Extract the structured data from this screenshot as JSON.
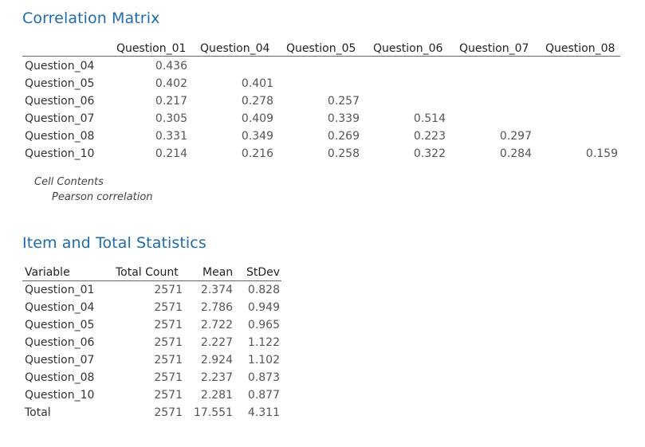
{
  "correlation": {
    "title": "Correlation Matrix",
    "columns": [
      "Question_01",
      "Question_04",
      "Question_05",
      "Question_06",
      "Question_07",
      "Question_08"
    ],
    "rows": [
      {
        "label": "Question_04",
        "values": [
          "0.436",
          "",
          "",
          "",
          "",
          ""
        ]
      },
      {
        "label": "Question_05",
        "values": [
          "0.402",
          "0.401",
          "",
          "",
          "",
          ""
        ]
      },
      {
        "label": "Question_06",
        "values": [
          "0.217",
          "0.278",
          "0.257",
          "",
          "",
          ""
        ]
      },
      {
        "label": "Question_07",
        "values": [
          "0.305",
          "0.409",
          "0.339",
          "0.514",
          "",
          ""
        ]
      },
      {
        "label": "Question_08",
        "values": [
          "0.331",
          "0.349",
          "0.269",
          "0.223",
          "0.297",
          ""
        ]
      },
      {
        "label": "Question_10",
        "values": [
          "0.214",
          "0.216",
          "0.258",
          "0.322",
          "0.284",
          "0.159"
        ]
      }
    ],
    "cell_contents_label": "Cell Contents",
    "cell_contents_value": "Pearson correlation"
  },
  "item_stats": {
    "title": "Item and Total Statistics",
    "columns": [
      "Variable",
      "Total Count",
      "Mean",
      "StDev"
    ],
    "rows": [
      {
        "variable": "Question_01",
        "count": "2571",
        "mean": "2.374",
        "stdev": "0.828"
      },
      {
        "variable": "Question_04",
        "count": "2571",
        "mean": "2.786",
        "stdev": "0.949"
      },
      {
        "variable": "Question_05",
        "count": "2571",
        "mean": "2.722",
        "stdev": "0.965"
      },
      {
        "variable": "Question_06",
        "count": "2571",
        "mean": "2.227",
        "stdev": "1.122"
      },
      {
        "variable": "Question_07",
        "count": "2571",
        "mean": "2.924",
        "stdev": "1.102"
      },
      {
        "variable": "Question_08",
        "count": "2571",
        "mean": "2.237",
        "stdev": "0.873"
      },
      {
        "variable": "Question_10",
        "count": "2571",
        "mean": "2.281",
        "stdev": "0.877"
      },
      {
        "variable": "Total",
        "count": "2571",
        "mean": "17.551",
        "stdev": "4.311"
      }
    ]
  }
}
